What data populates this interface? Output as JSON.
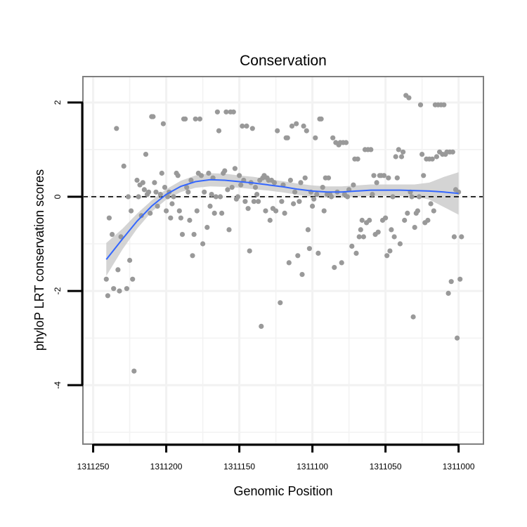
{
  "chart_data": {
    "type": "scatter",
    "title": "Conservation",
    "xlabel": "Genomic Position",
    "ylabel": "phyloP LRT conservation scores",
    "x_reversed": true,
    "xlim": [
      1311257,
      1310983
    ],
    "ylim": [
      -5.25,
      2.55
    ],
    "x_ticks": [
      1311250,
      1311200,
      1311150,
      1311100,
      1311050,
      1311000
    ],
    "x_tick_labels": [
      "1311250",
      "1311200",
      "1311150",
      "1311100",
      "1311050",
      "1311000"
    ],
    "y_ticks": [
      2,
      0,
      -2,
      -4
    ],
    "y_tick_labels": [
      "2",
      "0",
      "-2",
      "-4"
    ],
    "reference_line": {
      "y": 0,
      "style": "dashed"
    },
    "colors": {
      "points": "#999999",
      "smooth_line": "#3366ff",
      "ribbon": "#cccccc",
      "panel_border": "#7f7f7f",
      "grid": "#f2f2f2"
    },
    "points": [
      [
        1311241,
        -1.75
      ],
      [
        1311240,
        -2.1
      ],
      [
        1311239,
        -0.45
      ],
      [
        1311237,
        -0.8
      ],
      [
        1311236,
        -1.95
      ],
      [
        1311234,
        1.45
      ],
      [
        1311233,
        -1.55
      ],
      [
        1311232,
        -2.0
      ],
      [
        1311231,
        -0.85
      ],
      [
        1311229,
        0.65
      ],
      [
        1311227,
        -1.95
      ],
      [
        1311226,
        0.0
      ],
      [
        1311225,
        -1.35
      ],
      [
        1311224,
        -0.3
      ],
      [
        1311223,
        -1.75
      ],
      [
        1311222,
        -3.7
      ],
      [
        1311220,
        0.35
      ],
      [
        1311219,
        0.0
      ],
      [
        1311218,
        0.25
      ],
      [
        1311217,
        -0.4
      ],
      [
        1311216,
        0.3
      ],
      [
        1311215,
        0.15
      ],
      [
        1311214,
        0.9
      ],
      [
        1311213,
        0.05
      ],
      [
        1311212,
        0.1
      ],
      [
        1311211,
        -0.35
      ],
      [
        1311210,
        1.7
      ],
      [
        1311209,
        1.7
      ],
      [
        1311208,
        0.3
      ],
      [
        1311207,
        0.1
      ],
      [
        1311206,
        -0.2
      ],
      [
        1311204,
        0.05
      ],
      [
        1311203,
        0.5
      ],
      [
        1311202,
        1.55
      ],
      [
        1311201,
        0.2
      ],
      [
        1311200,
        -0.3
      ],
      [
        1311199,
        0.0
      ],
      [
        1311198,
        0.1
      ],
      [
        1311197,
        -0.45
      ],
      [
        1311196,
        -0.15
      ],
      [
        1311195,
        0.0
      ],
      [
        1311193,
        0.5
      ],
      [
        1311192,
        0.45
      ],
      [
        1311191,
        -0.3
      ],
      [
        1311190,
        -0.45
      ],
      [
        1311189,
        -0.8
      ],
      [
        1311188,
        1.65
      ],
      [
        1311187,
        1.65
      ],
      [
        1311186,
        0.2
      ],
      [
        1311185,
        0.1
      ],
      [
        1311184,
        -0.5
      ],
      [
        1311183,
        0.35
      ],
      [
        1311182,
        -1.25
      ],
      [
        1311181,
        -0.8
      ],
      [
        1311180,
        1.65
      ],
      [
        1311179,
        -0.3
      ],
      [
        1311178,
        0.5
      ],
      [
        1311177,
        1.65
      ],
      [
        1311176,
        0.45
      ],
      [
        1311175,
        -1.0
      ],
      [
        1311174,
        0.1
      ],
      [
        1311172,
        -0.65
      ],
      [
        1311171,
        0.5
      ],
      [
        1311170,
        -0.2
      ],
      [
        1311169,
        0.05
      ],
      [
        1311168,
        0.4
      ],
      [
        1311167,
        -0.35
      ],
      [
        1311166,
        0.0
      ],
      [
        1311165,
        1.8
      ],
      [
        1311164,
        1.4
      ],
      [
        1311163,
        0.0
      ],
      [
        1311162,
        -0.35
      ],
      [
        1311161,
        0.5
      ],
      [
        1311160,
        0.55
      ],
      [
        1311159,
        1.8
      ],
      [
        1311158,
        0.15
      ],
      [
        1311157,
        -0.7
      ],
      [
        1311156,
        1.8
      ],
      [
        1311155,
        0.2
      ],
      [
        1311154,
        1.8
      ],
      [
        1311153,
        0.6
      ],
      [
        1311152,
        -0.05
      ],
      [
        1311151,
        0.0
      ],
      [
        1311150,
        0.45
      ],
      [
        1311149,
        0.25
      ],
      [
        1311148,
        1.5
      ],
      [
        1311147,
        0.35
      ],
      [
        1311146,
        -0.1
      ],
      [
        1311145,
        1.5
      ],
      [
        1311144,
        -0.25
      ],
      [
        1311143,
        -1.15
      ],
      [
        1311142,
        0.3
      ],
      [
        1311141,
        1.45
      ],
      [
        1311140,
        -0.1
      ],
      [
        1311139,
        0.2
      ],
      [
        1311138,
        0.05
      ],
      [
        1311137,
        -0.1
      ],
      [
        1311136,
        0.35
      ],
      [
        1311135,
        -2.75
      ],
      [
        1311134,
        0.4
      ],
      [
        1311133,
        0.45
      ],
      [
        1311132,
        -0.3
      ],
      [
        1311131,
        0.4
      ],
      [
        1311130,
        0.35
      ],
      [
        1311129,
        -0.5
      ],
      [
        1311128,
        0.35
      ],
      [
        1311127,
        -0.25
      ],
      [
        1311126,
        0.3
      ],
      [
        1311125,
        -0.3
      ],
      [
        1311124,
        1.4
      ],
      [
        1311122,
        -2.25
      ],
      [
        1311121,
        -0.1
      ],
      [
        1311120,
        0.25
      ],
      [
        1311119,
        -0.35
      ],
      [
        1311118,
        1.25
      ],
      [
        1311117,
        1.25
      ],
      [
        1311116,
        -1.4
      ],
      [
        1311115,
        0.35
      ],
      [
        1311114,
        1.5
      ],
      [
        1311113,
        -0.15
      ],
      [
        1311112,
        0.1
      ],
      [
        1311111,
        1.55
      ],
      [
        1311110,
        -1.25
      ],
      [
        1311109,
        -0.1
      ],
      [
        1311108,
        0.3
      ],
      [
        1311107,
        -1.65
      ],
      [
        1311106,
        1.5
      ],
      [
        1311105,
        0.4
      ],
      [
        1311104,
        1.4
      ],
      [
        1311103,
        -0.7
      ],
      [
        1311102,
        -1.1
      ],
      [
        1311101,
        0.1
      ],
      [
        1311100,
        -0.2
      ],
      [
        1311099,
        -0.05
      ],
      [
        1311098,
        1.25
      ],
      [
        1311097,
        0.05
      ],
      [
        1311096,
        -1.2
      ],
      [
        1311095,
        1.65
      ],
      [
        1311094,
        1.65
      ],
      [
        1311093,
        0.2
      ],
      [
        1311092,
        -0.3
      ],
      [
        1311091,
        0.4
      ],
      [
        1311090,
        0.05
      ],
      [
        1311089,
        0.4
      ],
      [
        1311088,
        0.05
      ],
      [
        1311087,
        0.0
      ],
      [
        1311086,
        1.25
      ],
      [
        1311085,
        -1.5
      ],
      [
        1311084,
        1.15
      ],
      [
        1311083,
        0.1
      ],
      [
        1311082,
        1.1
      ],
      [
        1311081,
        1.15
      ],
      [
        1311080,
        -1.4
      ],
      [
        1311079,
        1.15
      ],
      [
        1311078,
        0.05
      ],
      [
        1311077,
        1.15
      ],
      [
        1311076,
        0.0
      ],
      [
        1311075,
        0.15
      ],
      [
        1311073,
        -1.05
      ],
      [
        1311072,
        0.25
      ],
      [
        1311071,
        0.8
      ],
      [
        1311070,
        -1.2
      ],
      [
        1311069,
        0.8
      ],
      [
        1311068,
        -0.85
      ],
      [
        1311067,
        -0.7
      ],
      [
        1311066,
        -0.5
      ],
      [
        1311065,
        -0.85
      ],
      [
        1311064,
        1.0
      ],
      [
        1311063,
        -0.55
      ],
      [
        1311062,
        1.0
      ],
      [
        1311061,
        -0.5
      ],
      [
        1311060,
        1.0
      ],
      [
        1311059,
        0.05
      ],
      [
        1311058,
        0.45
      ],
      [
        1311057,
        -0.8
      ],
      [
        1311056,
        0.3
      ],
      [
        1311055,
        -0.75
      ],
      [
        1311054,
        0.45
      ],
      [
        1311053,
        0.45
      ],
      [
        1311052,
        -0.5
      ],
      [
        1311051,
        0.45
      ],
      [
        1311050,
        -0.45
      ],
      [
        1311049,
        -1.25
      ],
      [
        1311048,
        0.4
      ],
      [
        1311047,
        -1.15
      ],
      [
        1311046,
        -0.7
      ],
      [
        1311045,
        0.0
      ],
      [
        1311044,
        -0.85
      ],
      [
        1311043,
        0.85
      ],
      [
        1311042,
        0.4
      ],
      [
        1311041,
        1.0
      ],
      [
        1311040,
        -1.0
      ],
      [
        1311039,
        0.85
      ],
      [
        1311038,
        0.95
      ],
      [
        1311037,
        -0.5
      ],
      [
        1311036,
        2.15
      ],
      [
        1311035,
        -0.35
      ],
      [
        1311034,
        2.1
      ],
      [
        1311033,
        0.1
      ],
      [
        1311032,
        0.0
      ],
      [
        1311031,
        -2.55
      ],
      [
        1311030,
        -0.65
      ],
      [
        1311029,
        -0.35
      ],
      [
        1311028,
        -0.3
      ],
      [
        1311027,
        0.0
      ],
      [
        1311026,
        1.95
      ],
      [
        1311025,
        0.9
      ],
      [
        1311024,
        0.45
      ],
      [
        1311023,
        -0.55
      ],
      [
        1311022,
        0.8
      ],
      [
        1311021,
        -0.5
      ],
      [
        1311020,
        0.8
      ],
      [
        1311019,
        -0.15
      ],
      [
        1311018,
        0.8
      ],
      [
        1311017,
        -0.3
      ],
      [
        1311016,
        1.95
      ],
      [
        1311015,
        0.85
      ],
      [
        1311014,
        1.95
      ],
      [
        1311013,
        0.95
      ],
      [
        1311012,
        1.95
      ],
      [
        1311011,
        0.9
      ],
      [
        1311010,
        1.95
      ],
      [
        1311009,
        0.9
      ],
      [
        1311008,
        0.95
      ],
      [
        1311007,
        -2.05
      ],
      [
        1311006,
        0.95
      ],
      [
        1311005,
        -1.8
      ],
      [
        1311004,
        0.95
      ],
      [
        1311003,
        -0.85
      ],
      [
        1311002,
        0.15
      ],
      [
        1311001,
        -3.0
      ],
      [
        1311000,
        0.1
      ],
      [
        1310999,
        -1.75
      ],
      [
        1310998,
        -0.85
      ]
    ],
    "smooth": [
      [
        1311241,
        -1.33
      ],
      [
        1311230,
        -0.9
      ],
      [
        1311220,
        -0.52
      ],
      [
        1311210,
        -0.2
      ],
      [
        1311200,
        0.05
      ],
      [
        1311190,
        0.22
      ],
      [
        1311180,
        0.32
      ],
      [
        1311170,
        0.36
      ],
      [
        1311160,
        0.35
      ],
      [
        1311150,
        0.32
      ],
      [
        1311140,
        0.29
      ],
      [
        1311130,
        0.25
      ],
      [
        1311120,
        0.21
      ],
      [
        1311110,
        0.16
      ],
      [
        1311100,
        0.12
      ],
      [
        1311090,
        0.1
      ],
      [
        1311080,
        0.1
      ],
      [
        1311070,
        0.12
      ],
      [
        1311060,
        0.14
      ],
      [
        1311050,
        0.14
      ],
      [
        1311040,
        0.14
      ],
      [
        1311030,
        0.13
      ],
      [
        1311020,
        0.12
      ],
      [
        1311010,
        0.1
      ],
      [
        1311000,
        0.07
      ]
    ],
    "band_upper": [
      [
        1311241,
        -0.98
      ],
      [
        1311230,
        -0.68
      ],
      [
        1311220,
        -0.36
      ],
      [
        1311210,
        -0.08
      ],
      [
        1311200,
        0.16
      ],
      [
        1311190,
        0.34
      ],
      [
        1311180,
        0.45
      ],
      [
        1311170,
        0.5
      ],
      [
        1311160,
        0.49
      ],
      [
        1311150,
        0.45
      ],
      [
        1311140,
        0.42
      ],
      [
        1311130,
        0.37
      ],
      [
        1311120,
        0.33
      ],
      [
        1311110,
        0.28
      ],
      [
        1311100,
        0.24
      ],
      [
        1311090,
        0.22
      ],
      [
        1311080,
        0.22
      ],
      [
        1311070,
        0.24
      ],
      [
        1311060,
        0.26
      ],
      [
        1311050,
        0.26
      ],
      [
        1311040,
        0.26
      ],
      [
        1311030,
        0.26
      ],
      [
        1311020,
        0.3
      ],
      [
        1311010,
        0.42
      ],
      [
        1311000,
        0.52
      ]
    ],
    "band_lower": [
      [
        1311241,
        -1.68
      ],
      [
        1311230,
        -1.12
      ],
      [
        1311220,
        -0.68
      ],
      [
        1311210,
        -0.32
      ],
      [
        1311200,
        -0.06
      ],
      [
        1311190,
        0.1
      ],
      [
        1311180,
        0.19
      ],
      [
        1311170,
        0.22
      ],
      [
        1311160,
        0.21
      ],
      [
        1311150,
        0.19
      ],
      [
        1311140,
        0.16
      ],
      [
        1311130,
        0.13
      ],
      [
        1311120,
        0.09
      ],
      [
        1311110,
        0.04
      ],
      [
        1311100,
        0.0
      ],
      [
        1311090,
        -0.02
      ],
      [
        1311080,
        -0.02
      ],
      [
        1311070,
        0.0
      ],
      [
        1311060,
        0.02
      ],
      [
        1311050,
        0.02
      ],
      [
        1311040,
        0.02
      ],
      [
        1311030,
        0.0
      ],
      [
        1311020,
        -0.06
      ],
      [
        1311010,
        -0.22
      ],
      [
        1311000,
        -0.38
      ]
    ]
  }
}
